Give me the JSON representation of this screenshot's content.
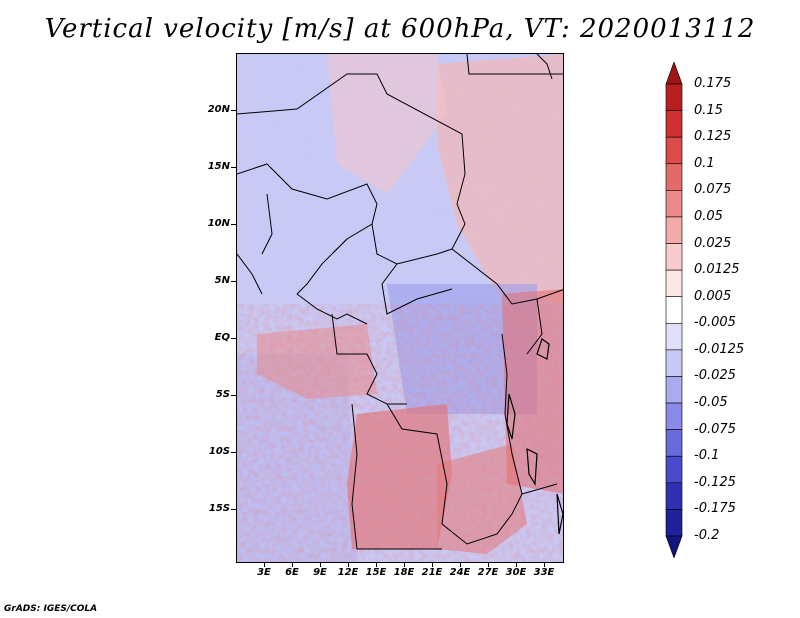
{
  "title": "Vertical velocity [m/s] at 600hPa, VT: 2020013112",
  "credit": "GrADS: IGES/COLA",
  "lat_labels": [
    "20N",
    "15N",
    "10N",
    "5N",
    "EQ",
    "5S",
    "10S",
    "15S"
  ],
  "lon_labels": [
    "3E",
    "6E",
    "9E",
    "12E",
    "15E",
    "18E",
    "21E",
    "24E",
    "27E",
    "30E",
    "33E"
  ],
  "colorbar": {
    "labels": [
      "0.175",
      "0.15",
      "0.125",
      "0.1",
      "0.075",
      "0.05",
      "0.025",
      "0.0125",
      "0.005",
      "-0.005",
      "-0.0125",
      "-0.025",
      "-0.05",
      "-0.075",
      "-0.1",
      "-0.125",
      "-0.175",
      "-0.2"
    ],
    "colors": [
      "#a01616",
      "#b81f1f",
      "#cf3030",
      "#dc4a4a",
      "#e46a6a",
      "#ec8a8a",
      "#f3aaaa",
      "#f8cccc",
      "#fce6e6",
      "#ffffff",
      "#e0e0fb",
      "#c8c8f6",
      "#aaaaf0",
      "#8a8ae8",
      "#6a6adc",
      "#4a4acc",
      "#3030b0",
      "#20209a",
      "#141480"
    ]
  }
}
